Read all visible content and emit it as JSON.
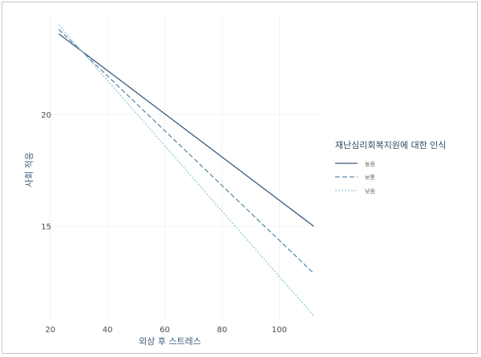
{
  "chart_data": {
    "type": "line",
    "xlabel": "외상 후 스트레스",
    "ylabel": "사회 적응",
    "x_ticks": [
      20,
      40,
      60,
      80,
      100
    ],
    "y_ticks": [
      15,
      20
    ],
    "xlim": [
      17,
      115
    ],
    "ylim": [
      10.8,
      24.4
    ],
    "grid": true,
    "legend": {
      "title": "재난심리회복지원에 대한 인식",
      "position": "right"
    },
    "series": [
      {
        "name": "높음",
        "x": [
          23,
          112
        ],
        "y": [
          23.6,
          15.0
        ],
        "color": "#3d5a80",
        "dash": "solid"
      },
      {
        "name": "보통",
        "x": [
          23,
          112
        ],
        "y": [
          23.8,
          12.9
        ],
        "color": "#5b8fa8",
        "dash": "dashed"
      },
      {
        "name": "낮음",
        "x": [
          23,
          112
        ],
        "y": [
          24.0,
          11.0
        ],
        "color": "#8ec9d4",
        "dash": "dotted"
      }
    ]
  }
}
